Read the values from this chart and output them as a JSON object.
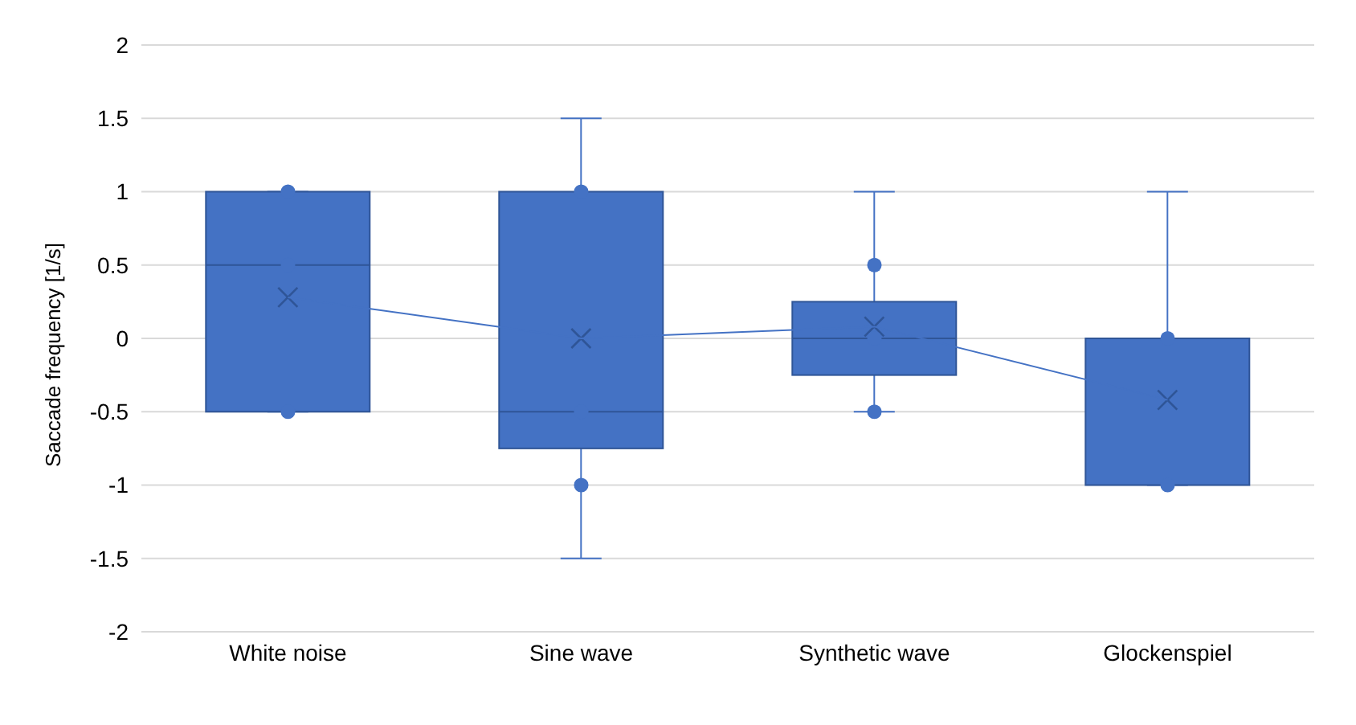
{
  "chart_data": {
    "type": "box",
    "categories": [
      "White noise",
      "Sine wave",
      "Synthetic wave",
      "Glockenspiel"
    ],
    "ylabel": "Saccade frequency [1/s]",
    "ylim": [
      -2,
      2
    ],
    "yticks": [
      -2,
      -1.5,
      -1,
      -0.5,
      0,
      0.5,
      1,
      1.5,
      2
    ],
    "grid": "y",
    "legend": false,
    "series": [
      {
        "color": "#4472c4",
        "boxes": [
          {
            "low": -0.5,
            "q1": -0.5,
            "median": 0.5,
            "q3": 1,
            "high": 1,
            "mean": 0.28
          },
          {
            "low": -1.5,
            "q1": -0.75,
            "median": -0.5,
            "q3": 1,
            "high": 1.5,
            "mean": 0
          },
          {
            "low": -0.5,
            "q1": -0.25,
            "median": 0,
            "q3": 0.25,
            "high": 1,
            "mean": 0.08
          },
          {
            "low": -1,
            "q1": -1,
            "median": 0,
            "q3": 0,
            "high": 1,
            "mean": -0.42
          }
        ]
      },
      {
        "type": "scatter",
        "color": "#4472c4",
        "marker": "circle",
        "x": [
          "White noise",
          "White noise",
          "White noise",
          "Sine wave",
          "Sine wave",
          "Sine wave",
          "Synthetic wave",
          "Synthetic wave",
          "Synthetic wave",
          "Glockenspiel",
          "Glockenspiel"
        ],
        "values": [
          1,
          0.5,
          -0.5,
          1,
          -0.5,
          -1,
          0.5,
          0,
          -0.5,
          0,
          -1
        ]
      },
      {
        "type": "line",
        "color": "#4472c4",
        "marker": "none",
        "values": [
          0.28,
          0,
          0.08,
          -0.42
        ]
      }
    ]
  }
}
